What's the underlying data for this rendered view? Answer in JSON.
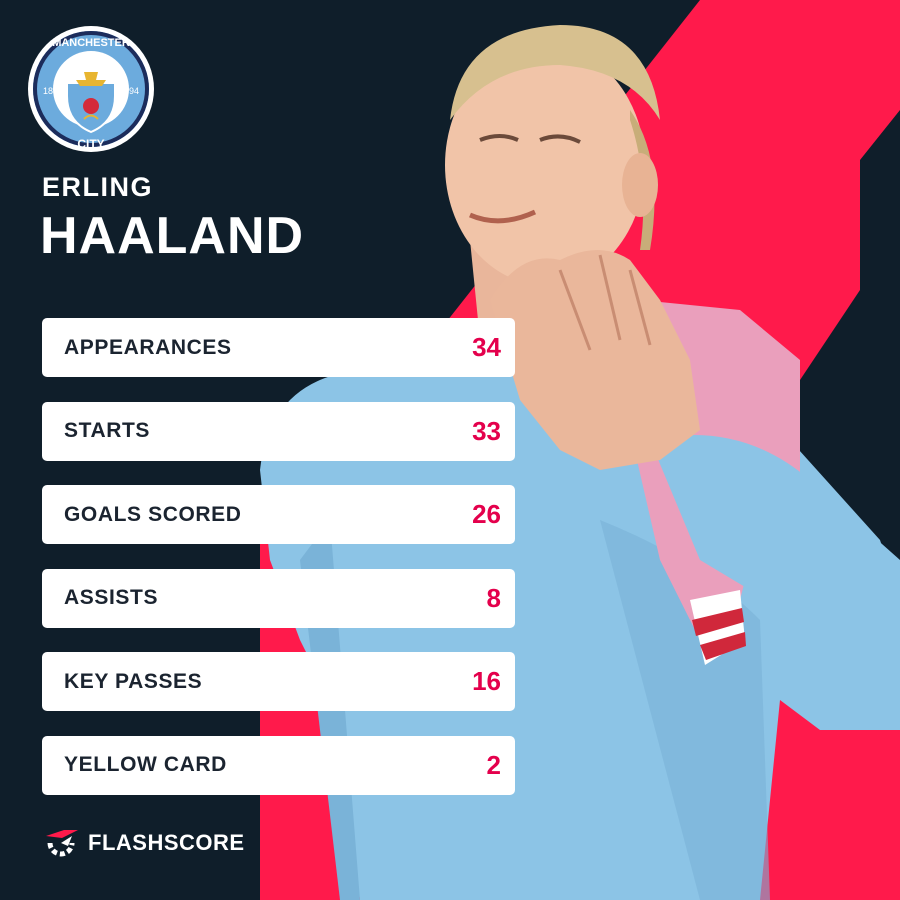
{
  "club": {
    "crest_text_top": "MANCHESTER",
    "crest_text_bottom": "CITY",
    "crest_year_left": "18",
    "crest_year_right": "94"
  },
  "player": {
    "first_name": "ERLING",
    "last_name": "HAALAND"
  },
  "stats": [
    {
      "label": "APPEARANCES",
      "value": "34"
    },
    {
      "label": "STARTS",
      "value": "33"
    },
    {
      "label": "GOALS SCORED",
      "value": "26"
    },
    {
      "label": "ASSISTS",
      "value": "8"
    },
    {
      "label": "KEY PASSES",
      "value": "16"
    },
    {
      "label": "YELLOW CARD",
      "value": "2"
    }
  ],
  "brand": {
    "name": "FLASHSCORE",
    "icon": "flashscore-logo-icon"
  },
  "colors": {
    "background": "#0f1e2a",
    "accent": "#ff1a4b",
    "value": "#e4004c",
    "shirt": "#8cc4e6"
  }
}
